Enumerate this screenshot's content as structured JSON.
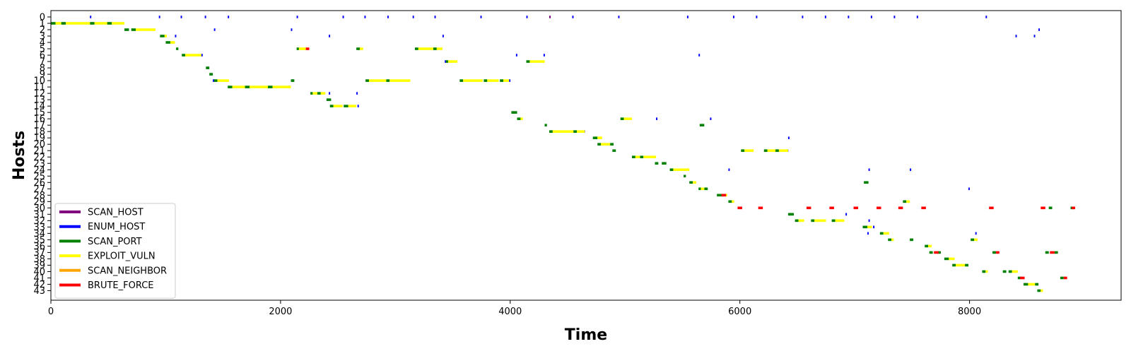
{
  "chart_data": {
    "type": "timeline",
    "xlabel": "Time",
    "ylabel": "Hosts",
    "xlim": [
      0,
      9320
    ],
    "ylim": [
      -1,
      44.5
    ],
    "xticks": [
      0,
      2000,
      4000,
      6000,
      8000
    ],
    "xtick_labels": [
      "0",
      "2000",
      "4000",
      "6000",
      "8000"
    ],
    "yticks": [
      0,
      1,
      2,
      3,
      4,
      5,
      6,
      7,
      8,
      9,
      10,
      11,
      12,
      13,
      14,
      15,
      16,
      17,
      18,
      19,
      20,
      21,
      22,
      23,
      24,
      25,
      26,
      27,
      28,
      29,
      30,
      31,
      32,
      33,
      34,
      35,
      36,
      37,
      38,
      39,
      40,
      41,
      42,
      43
    ],
    "ytick_labels": [
      "0",
      "1",
      "2",
      "3",
      "4",
      "5",
      "6",
      "7",
      "8",
      "9",
      "10",
      "11",
      "12",
      "13",
      "14",
      "15",
      "16",
      "17",
      "18",
      "19",
      "20",
      "21",
      "22",
      "23",
      "24",
      "25",
      "26",
      "27",
      "28",
      "29",
      "30",
      "31",
      "32",
      "33",
      "34",
      "35",
      "36",
      "37",
      "38",
      "39",
      "40",
      "41",
      "42",
      "43"
    ],
    "grid": false,
    "legend_position": "lower left",
    "legend": [
      {
        "label": "SCAN_HOST",
        "color": "#800080"
      },
      {
        "label": "ENUM_HOST",
        "color": "#0000ff"
      },
      {
        "label": "SCAN_PORT",
        "color": "#008000"
      },
      {
        "label": "EXPLOIT_VULN",
        "color": "#ffff00"
      },
      {
        "label": "SCAN_NEIGHBOR",
        "color": "#ffa500"
      },
      {
        "label": "BRUTE_FORCE",
        "color": "#ff0000"
      }
    ],
    "series": [
      {
        "action": "ENUM_HOST",
        "color": "#0000ff",
        "segments": [
          [
            0,
            340,
            352
          ],
          [
            0,
            940,
            952
          ],
          [
            0,
            1130,
            1142
          ],
          [
            0,
            1340,
            1352
          ],
          [
            0,
            1540,
            1552
          ],
          [
            0,
            2140,
            2152
          ],
          [
            0,
            2540,
            2552
          ],
          [
            0,
            2730,
            2742
          ],
          [
            0,
            2930,
            2942
          ],
          [
            0,
            3150,
            3162
          ],
          [
            0,
            3340,
            3352
          ],
          [
            0,
            3740,
            3752
          ],
          [
            0,
            4140,
            4152
          ],
          [
            0,
            4540,
            4552
          ],
          [
            0,
            4940,
            4952
          ],
          [
            0,
            5540,
            5552
          ],
          [
            0,
            5940,
            5952
          ],
          [
            0,
            6140,
            6152
          ],
          [
            0,
            6540,
            6552
          ],
          [
            0,
            6740,
            6752
          ],
          [
            0,
            6940,
            6952
          ],
          [
            0,
            7140,
            7152
          ],
          [
            0,
            7340,
            7352
          ],
          [
            0,
            7540,
            7552
          ],
          [
            0,
            8140,
            8152
          ],
          [
            2,
            1420,
            1432
          ],
          [
            2,
            2090,
            2102
          ],
          [
            2,
            8600,
            8612
          ],
          [
            3,
            1080,
            1092
          ],
          [
            3,
            2420,
            2432
          ],
          [
            3,
            3410,
            3422
          ],
          [
            3,
            8400,
            8412
          ],
          [
            3,
            8560,
            8572
          ],
          [
            6,
            1310,
            1322
          ],
          [
            6,
            4050,
            4062
          ],
          [
            6,
            4290,
            4302
          ],
          [
            6,
            5640,
            5652
          ],
          [
            7,
            3430,
            3442
          ],
          [
            8,
            1360,
            1372
          ],
          [
            10,
            1410,
            1422
          ],
          [
            10,
            2100,
            2112
          ],
          [
            10,
            3990,
            4002
          ],
          [
            11,
            2070,
            2082
          ],
          [
            12,
            2420,
            2432
          ],
          [
            12,
            2660,
            2672
          ],
          [
            14,
            2670,
            2682
          ],
          [
            16,
            5270,
            5282
          ],
          [
            16,
            5740,
            5752
          ],
          [
            18,
            4640,
            4652
          ],
          [
            19,
            6420,
            6432
          ],
          [
            21,
            6410,
            6422
          ],
          [
            24,
            5900,
            5912
          ],
          [
            24,
            7120,
            7132
          ],
          [
            24,
            7480,
            7492
          ],
          [
            27,
            7990,
            8002
          ],
          [
            31,
            6430,
            6442
          ],
          [
            31,
            6920,
            6932
          ],
          [
            32,
            7120,
            7132
          ],
          [
            33,
            7160,
            7172
          ],
          [
            34,
            7110,
            7122
          ],
          [
            34,
            8050,
            8062
          ]
        ]
      },
      {
        "action": "SCAN_HOST",
        "color": "#800080",
        "segments": [
          [
            0,
            4340,
            4352
          ]
        ]
      },
      {
        "action": "SCAN_PORT",
        "color": "#008000",
        "segments": [
          [
            1,
            0,
            40
          ],
          [
            1,
            90,
            130
          ],
          [
            1,
            340,
            380
          ],
          [
            1,
            490,
            530
          ],
          [
            2,
            640,
            680
          ],
          [
            2,
            700,
            740
          ],
          [
            3,
            950,
            990
          ],
          [
            4,
            1000,
            1040
          ],
          [
            5,
            1090,
            1110
          ],
          [
            6,
            1140,
            1170
          ],
          [
            8,
            1350,
            1380
          ],
          [
            9,
            1380,
            1410
          ],
          [
            10,
            1420,
            1450
          ],
          [
            11,
            1540,
            1580
          ],
          [
            11,
            1690,
            1730
          ],
          [
            11,
            1890,
            1930
          ],
          [
            10,
            2090,
            2120
          ],
          [
            12,
            2260,
            2280
          ],
          [
            12,
            2320,
            2350
          ],
          [
            13,
            2400,
            2440
          ],
          [
            14,
            2430,
            2460
          ],
          [
            14,
            2550,
            2590
          ],
          [
            5,
            2140,
            2160
          ],
          [
            5,
            2660,
            2690
          ],
          [
            10,
            2740,
            2770
          ],
          [
            10,
            2920,
            2950
          ],
          [
            5,
            3170,
            3200
          ],
          [
            5,
            3330,
            3360
          ],
          [
            7,
            3440,
            3460
          ],
          [
            10,
            3560,
            3590
          ],
          [
            10,
            3770,
            3800
          ],
          [
            10,
            3910,
            3940
          ],
          [
            15,
            4010,
            4060
          ],
          [
            16,
            4060,
            4090
          ],
          [
            7,
            4140,
            4170
          ],
          [
            17,
            4300,
            4320
          ],
          [
            18,
            4340,
            4370
          ],
          [
            18,
            4550,
            4580
          ],
          [
            19,
            4720,
            4760
          ],
          [
            20,
            4760,
            4790
          ],
          [
            20,
            4870,
            4900
          ],
          [
            21,
            4890,
            4920
          ],
          [
            16,
            4960,
            4990
          ],
          [
            22,
            5060,
            5090
          ],
          [
            22,
            5130,
            5160
          ],
          [
            23,
            5260,
            5290
          ],
          [
            23,
            5320,
            5360
          ],
          [
            24,
            5390,
            5420
          ],
          [
            25,
            5510,
            5530
          ],
          [
            26,
            5560,
            5590
          ],
          [
            27,
            5640,
            5660
          ],
          [
            27,
            5690,
            5720
          ],
          [
            17,
            5650,
            5690
          ],
          [
            28,
            5800,
            5830
          ],
          [
            28,
            5830,
            5860
          ],
          [
            29,
            5900,
            5930
          ],
          [
            21,
            6010,
            6040
          ],
          [
            21,
            6210,
            6240
          ],
          [
            21,
            6310,
            6340
          ],
          [
            31,
            6420,
            6470
          ],
          [
            32,
            6480,
            6510
          ],
          [
            32,
            6620,
            6650
          ],
          [
            32,
            6800,
            6830
          ],
          [
            33,
            7070,
            7110
          ],
          [
            26,
            7080,
            7120
          ],
          [
            34,
            7220,
            7250
          ],
          [
            29,
            7420,
            7450
          ],
          [
            35,
            7290,
            7320
          ],
          [
            35,
            7480,
            7510
          ],
          [
            36,
            7610,
            7640
          ],
          [
            37,
            7650,
            7680
          ],
          [
            37,
            7720,
            7750
          ],
          [
            38,
            7780,
            7820
          ],
          [
            39,
            7850,
            7880
          ],
          [
            39,
            7960,
            7990
          ],
          [
            35,
            8010,
            8040
          ],
          [
            40,
            8110,
            8140
          ],
          [
            40,
            8290,
            8320
          ],
          [
            40,
            8340,
            8370
          ],
          [
            41,
            8420,
            8450
          ],
          [
            42,
            8470,
            8510
          ],
          [
            42,
            8570,
            8600
          ],
          [
            43,
            8590,
            8620
          ],
          [
            37,
            8200,
            8230
          ],
          [
            37,
            8660,
            8690
          ],
          [
            37,
            8740,
            8770
          ],
          [
            30,
            8690,
            8720
          ],
          [
            30,
            8880,
            8910
          ],
          [
            41,
            8790,
            8820
          ]
        ]
      },
      {
        "action": "EXPLOIT_VULN",
        "color": "#ffff00",
        "segments": [
          [
            1,
            40,
            90
          ],
          [
            1,
            130,
            340
          ],
          [
            1,
            380,
            490
          ],
          [
            1,
            530,
            640
          ],
          [
            2,
            740,
            910
          ],
          [
            3,
            990,
            1010
          ],
          [
            4,
            1040,
            1080
          ],
          [
            6,
            1170,
            1310
          ],
          [
            10,
            1450,
            1550
          ],
          [
            11,
            1580,
            1690
          ],
          [
            11,
            1730,
            1890
          ],
          [
            11,
            1930,
            2090
          ],
          [
            5,
            2160,
            2220
          ],
          [
            12,
            2280,
            2320
          ],
          [
            12,
            2350,
            2390
          ],
          [
            14,
            2460,
            2540
          ],
          [
            14,
            2590,
            2660
          ],
          [
            5,
            2690,
            2720
          ],
          [
            10,
            2770,
            2920
          ],
          [
            10,
            2950,
            3130
          ],
          [
            5,
            3200,
            3330
          ],
          [
            5,
            3360,
            3410
          ],
          [
            7,
            3460,
            3540
          ],
          [
            10,
            3590,
            3760
          ],
          [
            10,
            3800,
            3900
          ],
          [
            10,
            3940,
            3990
          ],
          [
            16,
            4090,
            4110
          ],
          [
            7,
            4170,
            4300
          ],
          [
            18,
            4370,
            4550
          ],
          [
            18,
            4580,
            4650
          ],
          [
            19,
            4760,
            4800
          ],
          [
            20,
            4790,
            4870
          ],
          [
            16,
            4990,
            5060
          ],
          [
            22,
            5090,
            5130
          ],
          [
            22,
            5160,
            5270
          ],
          [
            24,
            5420,
            5560
          ],
          [
            26,
            5590,
            5620
          ],
          [
            27,
            5660,
            5690
          ],
          [
            28,
            5860,
            5890
          ],
          [
            29,
            5930,
            5950
          ],
          [
            21,
            6040,
            6120
          ],
          [
            21,
            6240,
            6310
          ],
          [
            21,
            6340,
            6420
          ],
          [
            32,
            6510,
            6560
          ],
          [
            32,
            6650,
            6750
          ],
          [
            32,
            6830,
            6910
          ],
          [
            33,
            7110,
            7150
          ],
          [
            34,
            7250,
            7300
          ],
          [
            29,
            7450,
            7480
          ],
          [
            35,
            7320,
            7340
          ],
          [
            36,
            7640,
            7670
          ],
          [
            38,
            7820,
            7870
          ],
          [
            39,
            7880,
            7960
          ],
          [
            40,
            8140,
            8160
          ],
          [
            40,
            8370,
            8420
          ],
          [
            42,
            8510,
            8570
          ],
          [
            43,
            8620,
            8640
          ],
          [
            35,
            8040,
            8070
          ]
        ]
      },
      {
        "action": "BRUTE_FORCE",
        "color": "#ff0000",
        "segments": [
          [
            5,
            2220,
            2250
          ],
          [
            28,
            5840,
            5880
          ],
          [
            30,
            5980,
            6020
          ],
          [
            30,
            6160,
            6200
          ],
          [
            30,
            6580,
            6620
          ],
          [
            30,
            6780,
            6820
          ],
          [
            30,
            6990,
            7030
          ],
          [
            30,
            7190,
            7230
          ],
          [
            30,
            7380,
            7420
          ],
          [
            30,
            7580,
            7620
          ],
          [
            30,
            8170,
            8210
          ],
          [
            30,
            8620,
            8660
          ],
          [
            30,
            8890,
            8920
          ],
          [
            37,
            7690,
            7730
          ],
          [
            37,
            8230,
            8260
          ],
          [
            37,
            8700,
            8740
          ],
          [
            41,
            8440,
            8480
          ],
          [
            41,
            8820,
            8850
          ]
        ]
      }
    ]
  }
}
